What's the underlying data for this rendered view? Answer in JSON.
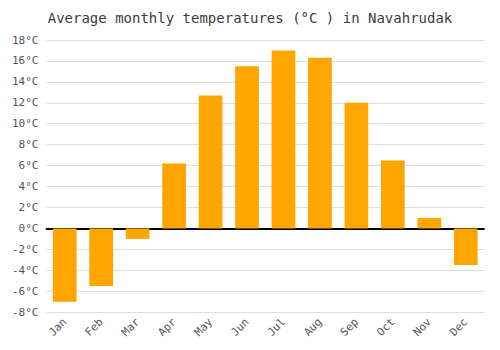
{
  "chart_data": {
    "type": "bar",
    "title": "Average monthly temperatures (°C ) in Navahrudak",
    "categories": [
      "Jan",
      "Feb",
      "Mar",
      "Apr",
      "May",
      "Jun",
      "Jul",
      "Aug",
      "Sep",
      "Oct",
      "Nov",
      "Dec"
    ],
    "values": [
      -7.0,
      -5.5,
      -1.0,
      6.2,
      12.7,
      15.5,
      17.0,
      16.3,
      12.0,
      6.5,
      1.0,
      -3.5
    ],
    "color": "#FFA500",
    "ylim": [
      -8,
      18
    ],
    "yticks": [
      {
        "value": -8,
        "label": "-8°C"
      },
      {
        "value": -6,
        "label": "-6°C"
      },
      {
        "value": -4,
        "label": "-4°C"
      },
      {
        "value": -2,
        "label": "-2°C"
      },
      {
        "value": 0,
        "label": "0°C"
      },
      {
        "value": 2,
        "label": "2°C"
      },
      {
        "value": 4,
        "label": "4°C"
      },
      {
        "value": 6,
        "label": "6°C"
      },
      {
        "value": 8,
        "label": "8°C"
      },
      {
        "value": 10,
        "label": "10°C"
      },
      {
        "value": 12,
        "label": "12°C"
      },
      {
        "value": 14,
        "label": "14°C"
      },
      {
        "value": 16,
        "label": "16°C"
      },
      {
        "value": 18,
        "label": "18°C"
      }
    ],
    "grid": true
  }
}
